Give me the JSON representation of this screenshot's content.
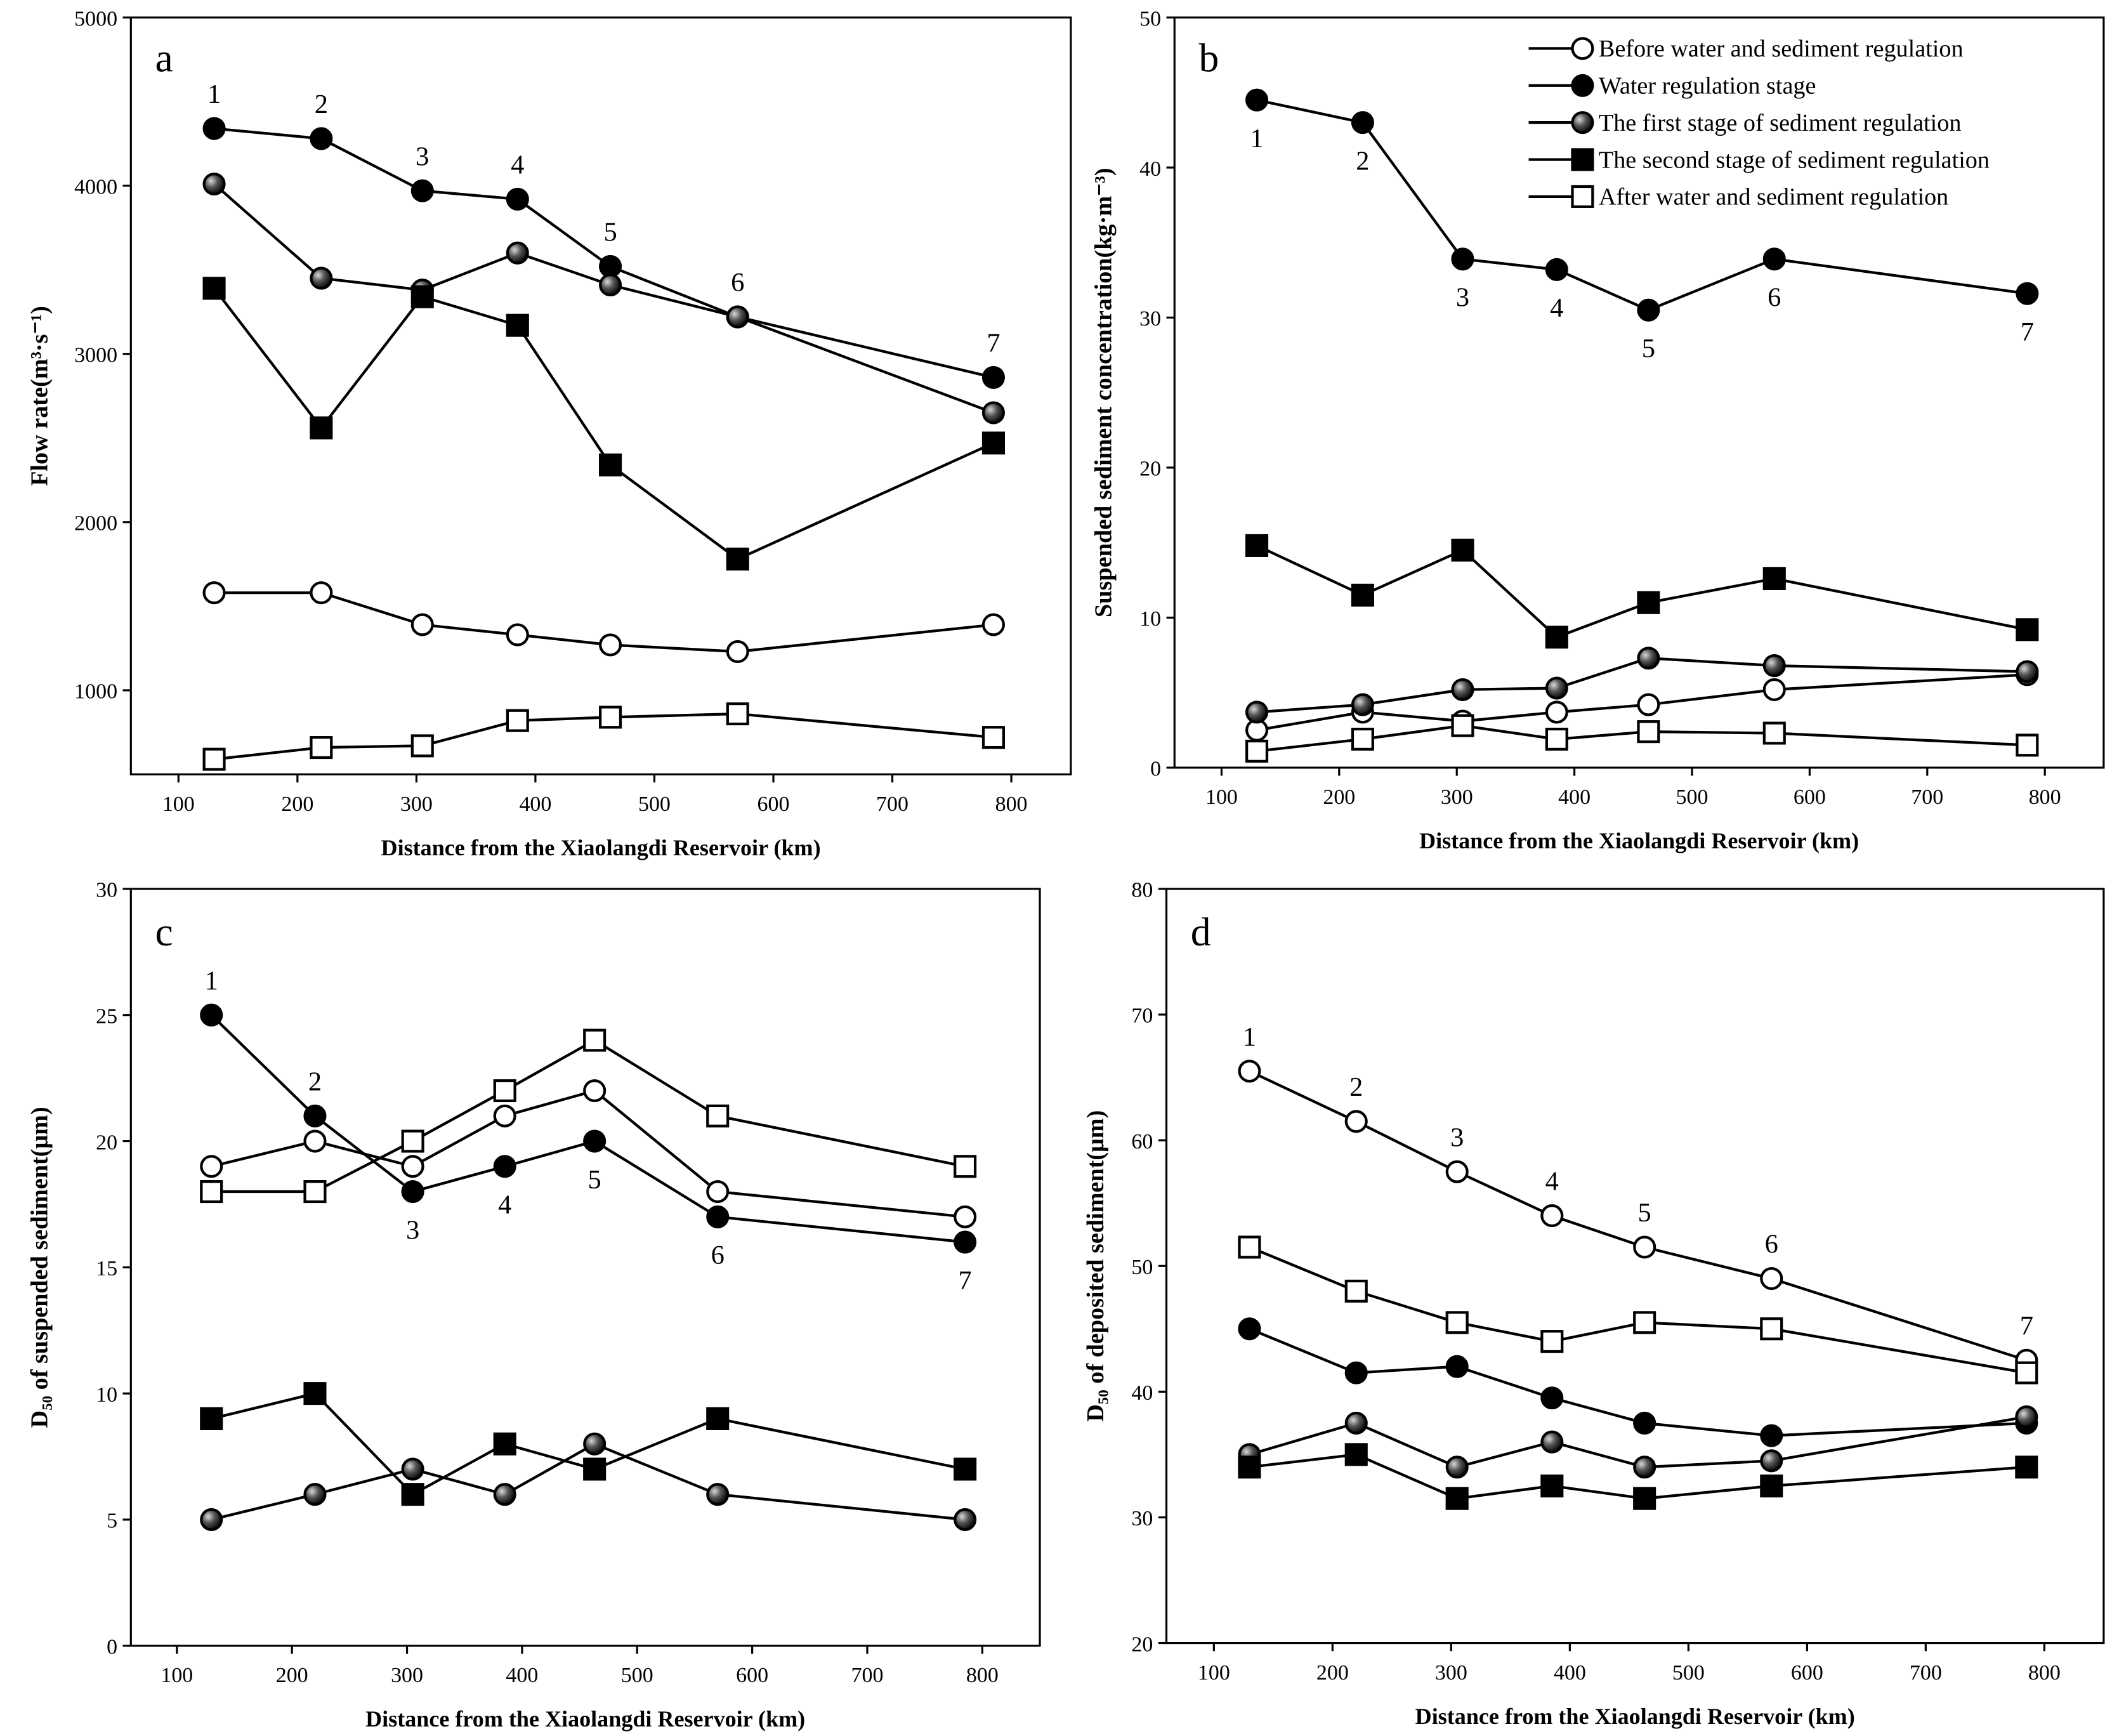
{
  "legend": {
    "placement": "top-right of panel b",
    "entries": [
      {
        "name": "Before water and sediment regulation",
        "marker": "open-circle"
      },
      {
        "name": "Water regulation stage",
        "marker": "filled-circle"
      },
      {
        "name": "The first stage of sediment regulation",
        "marker": "shaded-sphere"
      },
      {
        "name": "The second stage of sediment regulation",
        "marker": "filled-square"
      },
      {
        "name": "After water and sediment regulation",
        "marker": "open-square"
      }
    ]
  },
  "chart_data": [
    {
      "panel": "a",
      "type": "line",
      "xlabel": "Distance from the Xiaolangdi Reservoir (km)",
      "ylabel": "Flow rate(m³·s⁻¹)",
      "xlim": [
        60,
        850
      ],
      "ylim": [
        500,
        5000
      ],
      "xticks": [
        100,
        200,
        300,
        400,
        500,
        600,
        700,
        800
      ],
      "yticks": [
        1000,
        2000,
        3000,
        4000,
        5000
      ],
      "x": [
        130,
        220,
        305,
        385,
        463,
        570,
        785
      ],
      "point_labels": {
        "series": 1,
        "labels": [
          "1",
          "2",
          "3",
          "4",
          "5",
          "6",
          "7"
        ],
        "position": [
          "above",
          "above",
          "above",
          "above",
          "above",
          "above",
          "above"
        ]
      },
      "series": [
        {
          "name": "Before water and sediment regulation",
          "values": [
            1580,
            1580,
            1390,
            1330,
            1270,
            1230,
            1390
          ]
        },
        {
          "name": "Water regulation stage",
          "values": [
            4340,
            4280,
            3970,
            3920,
            3520,
            3220,
            2860
          ]
        },
        {
          "name": "The first stage of sediment regulation",
          "values": [
            4010,
            3450,
            3380,
            3600,
            3410,
            3220,
            2650
          ]
        },
        {
          "name": "The second stage of sediment regulation",
          "values": [
            3390,
            2560,
            3340,
            3170,
            2340,
            1780,
            2470
          ]
        },
        {
          "name": "After water and sediment regulation",
          "values": [
            590,
            660,
            670,
            820,
            840,
            860,
            720
          ]
        }
      ]
    },
    {
      "panel": "b",
      "type": "line",
      "xlabel": "Distance from the Xiaolangdi Reservoir (km)",
      "ylabel": "Suspended sediment concentration(kg·m⁻³)",
      "xlim": [
        60,
        850
      ],
      "ylim": [
        0,
        50
      ],
      "xticks": [
        100,
        200,
        300,
        400,
        500,
        600,
        700,
        800
      ],
      "yticks": [
        0,
        10,
        20,
        30,
        40,
        50
      ],
      "x": [
        130,
        220,
        305,
        385,
        463,
        570,
        785
      ],
      "point_labels": {
        "series": 1,
        "labels": [
          "1",
          "2",
          "3",
          "4",
          "5",
          "6",
          "7"
        ],
        "position": [
          "below",
          "below",
          "below",
          "below",
          "below",
          "below",
          "below"
        ]
      },
      "series": [
        {
          "name": "Before water and sediment regulation",
          "values": [
            2.5,
            3.7,
            3.1,
            3.7,
            4.2,
            5.2,
            6.2
          ]
        },
        {
          "name": "Water regulation stage",
          "values": [
            44.5,
            43,
            33.9,
            33.2,
            30.5,
            33.9,
            31.6
          ]
        },
        {
          "name": "The first stage of sediment regulation",
          "values": [
            3.7,
            4.2,
            5.2,
            5.3,
            7.3,
            6.8,
            6.4
          ]
        },
        {
          "name": "The second stage of sediment regulation",
          "values": [
            14.8,
            11.5,
            14.5,
            8.7,
            11,
            12.6,
            9.2
          ]
        },
        {
          "name": "After water and sediment regulation",
          "values": [
            1.1,
            1.9,
            2.8,
            1.9,
            2.4,
            2.3,
            1.5
          ]
        }
      ]
    },
    {
      "panel": "c",
      "type": "line",
      "xlabel": "Distance from the Xiaolangdi Reservoir (km)",
      "ylabel": "D₅₀ of suspended sediment(μm)",
      "xlim": [
        60,
        850
      ],
      "ylim": [
        0,
        30
      ],
      "xticks": [
        100,
        200,
        300,
        400,
        500,
        600,
        700,
        800
      ],
      "yticks": [
        0,
        5,
        10,
        15,
        20,
        25,
        30
      ],
      "x": [
        130,
        220,
        305,
        385,
        463,
        570,
        785
      ],
      "point_labels": {
        "series": 1,
        "labels": [
          "1",
          "2",
          "3",
          "4",
          "5",
          "6",
          "7"
        ],
        "position": [
          "above",
          "above",
          "below",
          "below",
          "below",
          "below",
          "below"
        ]
      },
      "series": [
        {
          "name": "Before water and sediment regulation",
          "values": [
            19,
            20,
            19,
            21,
            22,
            18,
            17
          ]
        },
        {
          "name": "Water regulation stage",
          "values": [
            25,
            21,
            18,
            19,
            20,
            17,
            16
          ]
        },
        {
          "name": "The first stage of sediment regulation",
          "values": [
            5,
            6,
            7,
            6,
            8,
            6,
            5
          ]
        },
        {
          "name": "The second stage of sediment regulation",
          "values": [
            9,
            10,
            6,
            8,
            7,
            9,
            7
          ]
        },
        {
          "name": "After water and sediment regulation",
          "values": [
            18,
            18,
            20,
            22,
            24,
            21,
            19
          ]
        }
      ]
    },
    {
      "panel": "d",
      "type": "line",
      "xlabel": "Distance from the Xiaolangdi Reservoir (km)",
      "ylabel": "D₅₀ of deposited sediment(μm)",
      "xlim": [
        60,
        850
      ],
      "ylim": [
        20,
        80
      ],
      "xticks": [
        100,
        200,
        300,
        400,
        500,
        600,
        700,
        800
      ],
      "yticks": [
        20,
        30,
        40,
        50,
        60,
        70,
        80
      ],
      "x": [
        130,
        220,
        305,
        385,
        463,
        570,
        785
      ],
      "point_labels": {
        "series": 0,
        "labels": [
          "1",
          "2",
          "3",
          "4",
          "5",
          "6",
          "7"
        ],
        "position": [
          "above",
          "above",
          "above",
          "above",
          "above",
          "above",
          "above"
        ]
      },
      "series": [
        {
          "name": "Before water and sediment regulation",
          "values": [
            65.5,
            61.5,
            57.5,
            54,
            51.5,
            49,
            42.5
          ]
        },
        {
          "name": "Water regulation stage",
          "values": [
            45,
            41.5,
            42,
            39.5,
            37.5,
            36.5,
            37.5
          ]
        },
        {
          "name": "The first stage of sediment regulation",
          "values": [
            35,
            37.5,
            34,
            36,
            34,
            34.5,
            38
          ]
        },
        {
          "name": "The second stage of sediment regulation",
          "values": [
            34,
            35,
            31.5,
            32.5,
            31.5,
            32.5,
            34
          ]
        },
        {
          "name": "After water and sediment regulation",
          "values": [
            51.5,
            48,
            45.5,
            44,
            45.5,
            45,
            41.5
          ]
        }
      ]
    }
  ]
}
